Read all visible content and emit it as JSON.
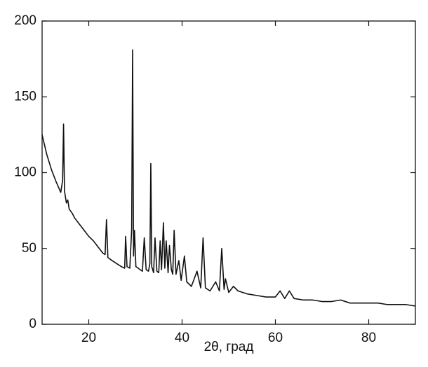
{
  "chart_data": {
    "type": "line",
    "xlabel": "2θ, град",
    "x": [
      10,
      11,
      12,
      13,
      14,
      14.4,
      14.6,
      14.8,
      15.2,
      15.5,
      15.8,
      16.5,
      17,
      18,
      19,
      20,
      21,
      22,
      23,
      23.5,
      23.8,
      24.1,
      25,
      26,
      27,
      27.7,
      27.9,
      28.2,
      28.8,
      29.2,
      29.4,
      29.6,
      29.8,
      30.1,
      30.6,
      31,
      31.5,
      31.9,
      32.3,
      32.8,
      33.1,
      33.3,
      33.5,
      33.9,
      34.2,
      34.6,
      35,
      35.3,
      35.6,
      36,
      36.3,
      36.6,
      37,
      37.3,
      37.7,
      38,
      38.3,
      38.7,
      39.3,
      39.8,
      40.5,
      41,
      42,
      43.2,
      44,
      44.5,
      45,
      46,
      47.2,
      48,
      48.5,
      49,
      49.3,
      50,
      51,
      52,
      54,
      56,
      58,
      60,
      61,
      62,
      63,
      64,
      66,
      68,
      70,
      72,
      74,
      76,
      78,
      80,
      82,
      84,
      86,
      88,
      90
    ],
    "values": [
      125,
      112,
      102,
      94,
      87,
      95,
      132,
      88,
      80,
      82,
      76,
      73,
      70,
      66,
      62,
      58,
      55,
      51,
      47,
      46,
      69,
      44,
      42,
      40,
      38,
      37,
      58,
      38,
      37,
      63,
      181,
      45,
      62,
      38,
      37,
      36,
      35,
      57,
      36,
      35,
      40,
      106,
      38,
      34,
      57,
      35,
      34,
      55,
      36,
      67,
      37,
      55,
      34,
      52,
      36,
      33,
      62,
      33,
      42,
      29,
      45,
      28,
      25,
      35,
      24,
      57,
      24,
      22,
      28,
      22,
      50,
      23,
      30,
      21,
      25,
      22,
      20,
      19,
      18,
      18,
      22,
      17,
      22,
      17,
      16,
      16,
      15,
      15,
      16,
      14,
      14,
      14,
      14,
      13,
      13,
      13,
      12
    ],
    "color": "#111111",
    "xlim": [
      10,
      90
    ],
    "xticks": [
      20,
      40,
      60,
      80
    ],
    "ylim": [
      0,
      200
    ],
    "yticks": [
      0,
      50,
      100,
      150,
      200
    ]
  }
}
